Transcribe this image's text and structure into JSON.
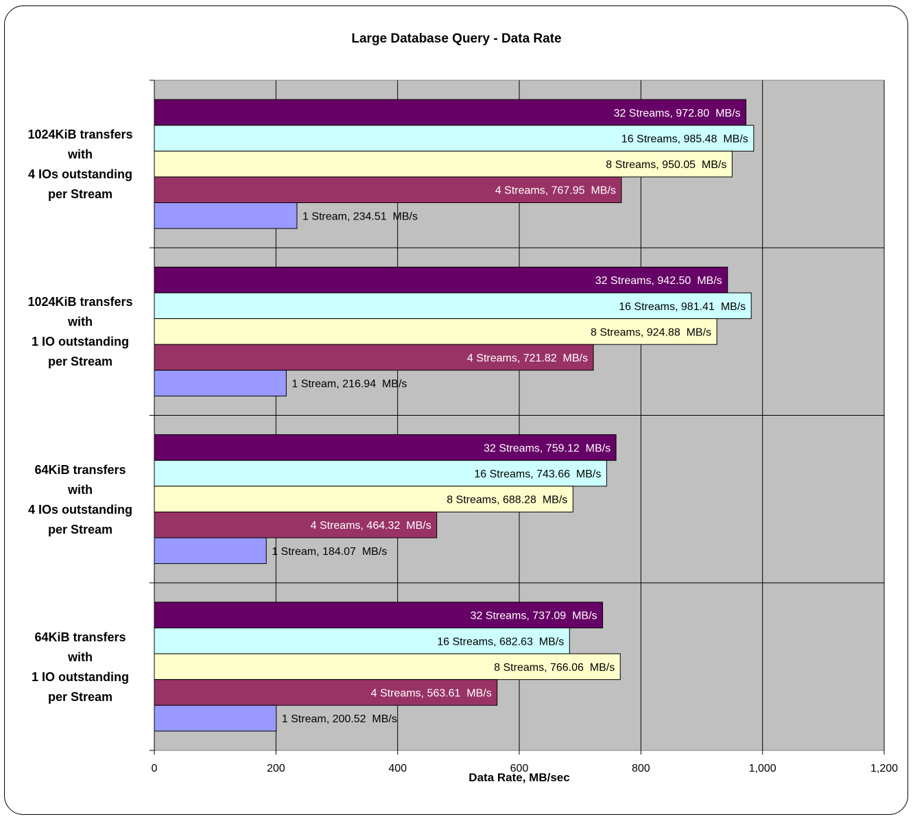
{
  "chart_data": {
    "type": "bar",
    "orientation": "horizontal",
    "title": "Large Database Query - Data Rate",
    "xlabel": "Data Rate, MB/sec",
    "ylabel": "",
    "xlim": [
      0,
      1200
    ],
    "xticks": [
      "0",
      "200",
      "400",
      "600",
      "800",
      "1,000",
      "1,200"
    ],
    "grid": true,
    "categories": [
      [
        "1024KiB transfers",
        "with",
        "4 IOs outstanding",
        "per Stream"
      ],
      [
        "1024KiB transfers",
        "with",
        "1 IO outstanding",
        "per Stream"
      ],
      [
        "64KiB transfers",
        "with",
        "4 IOs outstanding",
        "per Stream"
      ],
      [
        "64KiB transfers",
        "with",
        "1 IO outstanding",
        "per Stream"
      ]
    ],
    "series": [
      {
        "name": "32 Streams",
        "color": "#660066",
        "label_color": "#ffffff",
        "values": [
          972.8,
          942.5,
          759.12,
          737.09
        ],
        "labels": [
          "32 Streams, 972.80  MB/s",
          "32 Streams, 942.50  MB/s",
          "32 Streams, 759.12  MB/s",
          "32 Streams, 737.09  MB/s"
        ]
      },
      {
        "name": "16 Streams",
        "color": "#ccffff",
        "label_color": "#000000",
        "values": [
          985.48,
          981.41,
          743.66,
          682.63
        ],
        "labels": [
          "16 Streams, 985.48  MB/s",
          "16 Streams, 981.41  MB/s",
          "16 Streams, 743.66  MB/s",
          "16 Streams, 682.63  MB/s"
        ]
      },
      {
        "name": "8 Streams",
        "color": "#ffffcc",
        "label_color": "#000000",
        "values": [
          950.05,
          924.88,
          688.28,
          766.06
        ],
        "labels": [
          "8 Streams, 950.05  MB/s",
          "8 Streams, 924.88  MB/s",
          "8 Streams, 688.28  MB/s",
          "8 Streams, 766.06  MB/s"
        ]
      },
      {
        "name": "4 Streams",
        "color": "#993366",
        "label_color": "#ffffff",
        "values": [
          767.95,
          721.82,
          464.32,
          563.61
        ],
        "labels": [
          "4 Streams, 767.95  MB/s",
          "4 Streams, 721.82  MB/s",
          "4 Streams, 464.32  MB/s",
          "4 Streams, 563.61  MB/s"
        ]
      },
      {
        "name": "1 Stream",
        "color": "#9999ff",
        "label_color": "#000000",
        "values": [
          234.51,
          216.94,
          184.07,
          200.52
        ],
        "labels": [
          "1 Stream, 234.51  MB/s",
          "1 Stream, 216.94  MB/s",
          "1 Stream, 184.07  MB/s",
          "1 Stream, 200.52  MB/s"
        ]
      }
    ],
    "colors": {
      "plot_background": "#c0c0c0",
      "gridline": "#000000"
    }
  }
}
